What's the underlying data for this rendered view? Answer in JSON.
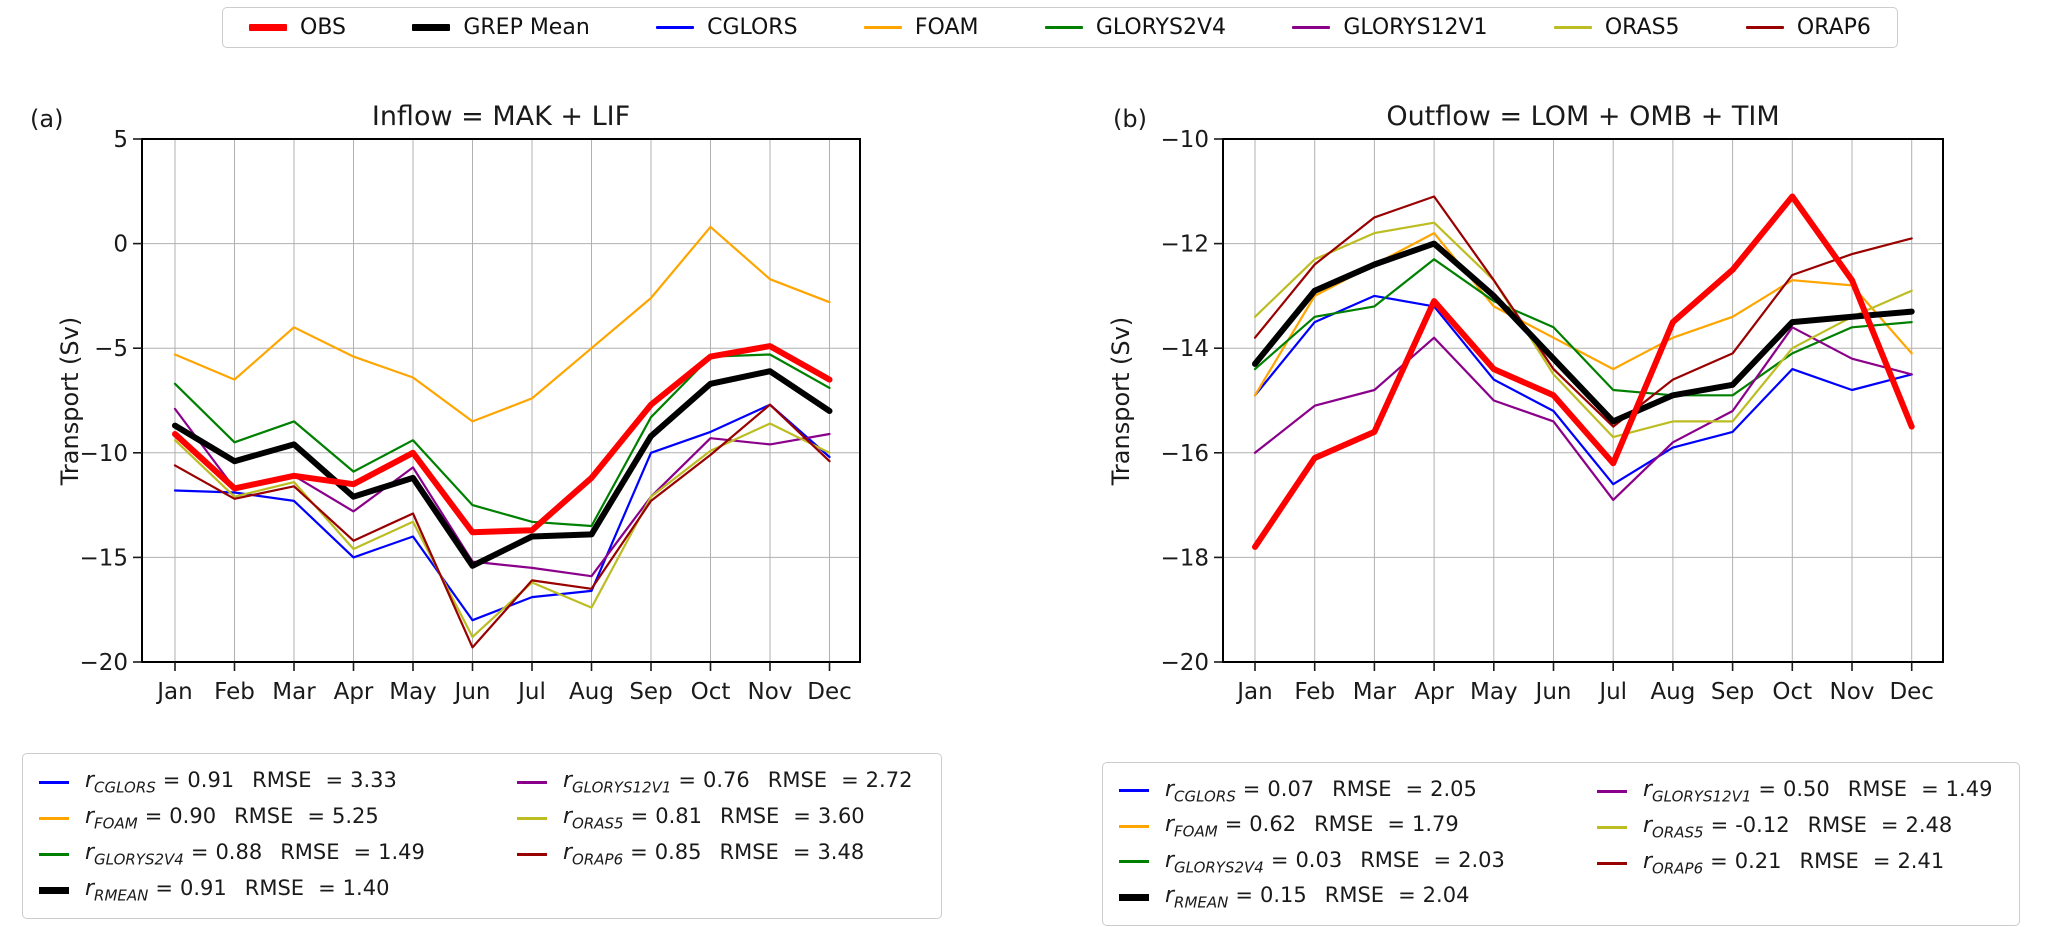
{
  "legend": {
    "items": [
      {
        "label": "OBS",
        "color": "#ff0000",
        "thick": true
      },
      {
        "label": "GREP Mean",
        "color": "#000000",
        "thick": true
      },
      {
        "label": "CGLORS",
        "color": "#0000ff",
        "thick": false
      },
      {
        "label": "FOAM",
        "color": "#ffa500",
        "thick": false
      },
      {
        "label": "GLORYS2V4",
        "color": "#008000",
        "thick": false
      },
      {
        "label": "GLORYS12V1",
        "color": "#8b008b",
        "thick": false
      },
      {
        "label": "ORAS5",
        "color": "#bcbd22",
        "thick": false
      },
      {
        "label": "ORAP6",
        "color": "#990000",
        "thick": false
      }
    ]
  },
  "chart_data": [
    {
      "type": "line",
      "panel_label": "(a)",
      "title": "Inflow = MAK + LIF",
      "ylabel": "Transport (Sv)",
      "xlabel": "",
      "ylim": [
        -20,
        5
      ],
      "yticks": [
        5,
        0,
        -5,
        -10,
        -15,
        -20
      ],
      "ytick_labels": [
        "5",
        "0",
        "−5",
        "−10",
        "−15",
        "−20"
      ],
      "categories": [
        "Jan",
        "Feb",
        "Mar",
        "Apr",
        "May",
        "Jun",
        "Jul",
        "Aug",
        "Sep",
        "Oct",
        "Nov",
        "Dec"
      ],
      "grid": true,
      "legend_position": "figure-top",
      "series": [
        {
          "name": "OBS",
          "color": "#ff0000",
          "thick": true,
          "values": [
            -9.1,
            -11.7,
            -11.1,
            -11.5,
            -10.0,
            -13.8,
            -13.7,
            -11.2,
            -7.7,
            -5.4,
            -4.9,
            -6.5
          ]
        },
        {
          "name": "GREP Mean",
          "color": "#000000",
          "thick": true,
          "values": [
            -8.7,
            -10.4,
            -9.6,
            -12.1,
            -11.2,
            -15.4,
            -14.0,
            -13.9,
            -9.2,
            -6.7,
            -6.1,
            -8.0
          ]
        },
        {
          "name": "CGLORS",
          "color": "#0000ff",
          "thick": false,
          "values": [
            -11.8,
            -11.9,
            -12.3,
            -15.0,
            -14.0,
            -18.0,
            -16.9,
            -16.6,
            -10.0,
            -9.0,
            -7.7,
            -10.2
          ]
        },
        {
          "name": "FOAM",
          "color": "#ffa500",
          "thick": false,
          "values": [
            -5.3,
            -6.5,
            -4.0,
            -5.4,
            -6.4,
            -8.5,
            -7.4,
            -5.0,
            -2.6,
            0.8,
            -1.7,
            -2.8
          ]
        },
        {
          "name": "GLORYS2V4",
          "color": "#008000",
          "thick": false,
          "values": [
            -6.7,
            -9.5,
            -8.5,
            -10.9,
            -9.4,
            -12.5,
            -13.3,
            -13.5,
            -8.3,
            -5.4,
            -5.3,
            -6.9
          ]
        },
        {
          "name": "GLORYS12V1",
          "color": "#8b008b",
          "thick": false,
          "values": [
            -7.9,
            -11.7,
            -11.1,
            -12.8,
            -10.7,
            -15.2,
            -15.5,
            -15.9,
            -12.1,
            -9.3,
            -9.6,
            -9.1
          ]
        },
        {
          "name": "ORAS5",
          "color": "#bcbd22",
          "thick": false,
          "values": [
            -9.4,
            -12.1,
            -11.4,
            -14.6,
            -13.3,
            -18.8,
            -16.2,
            -17.4,
            -12.1,
            -9.9,
            -8.6,
            -10.0
          ]
        },
        {
          "name": "ORAP6",
          "color": "#990000",
          "thick": false,
          "values": [
            -10.6,
            -12.2,
            -11.6,
            -14.2,
            -12.9,
            -19.3,
            -16.1,
            -16.5,
            -12.3,
            -10.1,
            -7.7,
            -10.4
          ]
        }
      ],
      "stats_box": {
        "rmse_label": "RMSE",
        "columns": [
          [
            {
              "param": "CGLORS",
              "r": "0.91",
              "rmse": "3.33",
              "color": "#0000ff",
              "thick": false
            },
            {
              "param": "FOAM",
              "r": "0.90",
              "rmse": "5.25",
              "color": "#ffa500",
              "thick": false
            },
            {
              "param": "GLORYS2V4",
              "r": "0.88",
              "rmse": "1.49",
              "color": "#008000",
              "thick": false
            },
            {
              "param": "RMEAN",
              "r": "0.91",
              "rmse": "1.40",
              "color": "#000000",
              "thick": true
            }
          ],
          [
            {
              "param": "GLORYS12V1",
              "r": "0.76",
              "rmse": "2.72",
              "color": "#8b008b",
              "thick": false
            },
            {
              "param": "ORAS5",
              "r": "0.81",
              "rmse": "3.60",
              "color": "#bcbd22",
              "thick": false
            },
            {
              "param": "ORAP6",
              "r": "0.85",
              "rmse": "3.48",
              "color": "#990000",
              "thick": false
            }
          ]
        ]
      }
    },
    {
      "type": "line",
      "panel_label": "(b)",
      "title": "Outflow = LOM + OMB + TIM",
      "ylabel": "Transport (Sv)",
      "xlabel": "",
      "ylim": [
        -20,
        -10
      ],
      "yticks": [
        -10,
        -12,
        -14,
        -16,
        -18,
        -20
      ],
      "ytick_labels": [
        "−10",
        "−12",
        "−14",
        "−16",
        "−18",
        "−20"
      ],
      "categories": [
        "Jan",
        "Feb",
        "Mar",
        "Apr",
        "May",
        "Jun",
        "Jul",
        "Aug",
        "Sep",
        "Oct",
        "Nov",
        "Dec"
      ],
      "grid": true,
      "legend_position": "figure-top",
      "series": [
        {
          "name": "OBS",
          "color": "#ff0000",
          "thick": true,
          "values": [
            -17.8,
            -16.1,
            -15.6,
            -13.1,
            -14.4,
            -14.9,
            -16.2,
            -13.5,
            -12.5,
            -11.1,
            -12.7,
            -15.5
          ]
        },
        {
          "name": "GREP Mean",
          "color": "#000000",
          "thick": true,
          "values": [
            -14.3,
            -12.9,
            -12.4,
            -12.0,
            -13.0,
            -14.2,
            -15.4,
            -14.9,
            -14.7,
            -13.5,
            -13.4,
            -13.3
          ]
        },
        {
          "name": "CGLORS",
          "color": "#0000ff",
          "thick": false,
          "values": [
            -14.9,
            -13.5,
            -13.0,
            -13.2,
            -14.6,
            -15.2,
            -16.6,
            -15.9,
            -15.6,
            -14.4,
            -14.8,
            -14.5
          ]
        },
        {
          "name": "FOAM",
          "color": "#ffa500",
          "thick": false,
          "values": [
            -14.9,
            -13.0,
            -12.4,
            -11.8,
            -13.2,
            -13.8,
            -14.4,
            -13.8,
            -13.4,
            -12.7,
            -12.8,
            -14.1
          ]
        },
        {
          "name": "GLORYS2V4",
          "color": "#008000",
          "thick": false,
          "values": [
            -14.4,
            -13.4,
            -13.2,
            -12.3,
            -13.1,
            -13.6,
            -14.8,
            -14.9,
            -14.9,
            -14.1,
            -13.6,
            -13.5
          ]
        },
        {
          "name": "GLORYS12V1",
          "color": "#8b008b",
          "thick": false,
          "values": [
            -16.0,
            -15.1,
            -14.8,
            -13.8,
            -15.0,
            -15.4,
            -16.9,
            -15.8,
            -15.2,
            -13.6,
            -14.2,
            -14.5
          ]
        },
        {
          "name": "ORAS5",
          "color": "#bcbd22",
          "thick": false,
          "values": [
            -13.4,
            -12.3,
            -11.8,
            -11.6,
            -12.7,
            -14.5,
            -15.7,
            -15.4,
            -15.4,
            -14.0,
            -13.4,
            -12.9
          ]
        },
        {
          "name": "ORAP6",
          "color": "#990000",
          "thick": false,
          "values": [
            -13.8,
            -12.4,
            -11.5,
            -11.1,
            -12.7,
            -14.4,
            -15.5,
            -14.6,
            -14.1,
            -12.6,
            -12.2,
            -11.9
          ]
        }
      ],
      "stats_box": {
        "rmse_label": "RMSE",
        "columns": [
          [
            {
              "param": "CGLORS",
              "r": "0.07",
              "rmse": "2.05",
              "color": "#0000ff",
              "thick": false
            },
            {
              "param": "FOAM",
              "r": "0.62",
              "rmse": "1.79",
              "color": "#ffa500",
              "thick": false
            },
            {
              "param": "GLORYS2V4",
              "r": "0.03",
              "rmse": "2.03",
              "color": "#008000",
              "thick": false
            },
            {
              "param": "RMEAN",
              "r": "0.15",
              "rmse": "2.04",
              "color": "#000000",
              "thick": true
            }
          ],
          [
            {
              "param": "GLORYS12V1",
              "r": "0.50",
              "rmse": "1.49",
              "color": "#8b008b",
              "thick": false
            },
            {
              "param": "ORAS5",
              "r": "-0.12",
              "rmse": "2.48",
              "color": "#bcbd22",
              "thick": false
            },
            {
              "param": "ORAP6",
              "r": "0.21",
              "rmse": "2.41",
              "color": "#990000",
              "thick": false
            }
          ]
        ]
      }
    }
  ]
}
